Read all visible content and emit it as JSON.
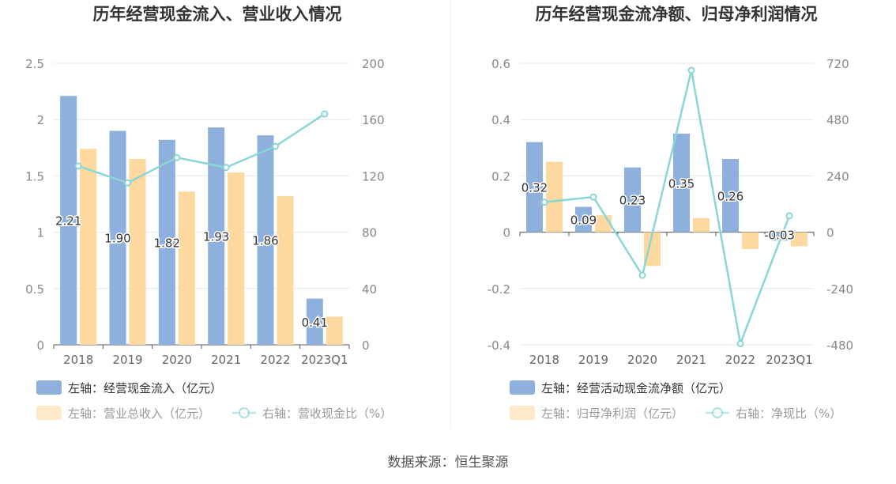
{
  "source_note": "数据来源：恒生聚源",
  "chart_data": [
    {
      "type": "bar",
      "title": "历年经营现金流入、营业收入情况",
      "categories": [
        "2018",
        "2019",
        "2020",
        "2021",
        "2022",
        "2023Q1"
      ],
      "ylim_left": [
        0,
        2.5
      ],
      "yticks_left": [
        "0",
        "0.5",
        "1",
        "1.5",
        "2",
        "2.5"
      ],
      "ylim_right": [
        0,
        200
      ],
      "yticks_right": [
        "0",
        "40",
        "80",
        "120",
        "160",
        "200"
      ],
      "series": [
        {
          "name": "左轴：经营现金流入（亿元）",
          "axis": "left",
          "kind": "bar",
          "color": "#8eb0dc",
          "values": [
            2.21,
            1.9,
            1.82,
            1.93,
            1.86,
            0.41
          ],
          "labels": [
            "2.21",
            "1.90",
            "1.82",
            "1.93",
            "1.86",
            "0.41"
          ]
        },
        {
          "name": "左轴：营业总收入（亿元）",
          "axis": "left",
          "kind": "bar",
          "color": "#fdd89f",
          "values": [
            1.74,
            1.65,
            1.36,
            1.53,
            1.32,
            0.25
          ]
        },
        {
          "name": "右轴：营收现金比（%）",
          "axis": "right",
          "kind": "line",
          "color": "#8ad6d6",
          "values": [
            127,
            115,
            133,
            126,
            141,
            164
          ]
        }
      ],
      "grid": true,
      "legend": "bottom-left"
    },
    {
      "type": "bar",
      "title": "历年经营现金流净额、归母净利润情况",
      "categories": [
        "2018",
        "2019",
        "2020",
        "2021",
        "2022",
        "2023Q1"
      ],
      "ylim_left": [
        -0.4,
        0.6
      ],
      "yticks_left": [
        "-0.4",
        "-0.2",
        "0",
        "0.2",
        "0.4",
        "0.6"
      ],
      "ylim_right": [
        -480,
        720
      ],
      "yticks_right": [
        "-480",
        "-240",
        "0",
        "240",
        "480",
        "720"
      ],
      "series": [
        {
          "name": "左轴：经营活动现金流净额（亿元）",
          "axis": "left",
          "kind": "bar",
          "color": "#8eb0dc",
          "values": [
            0.32,
            0.09,
            0.23,
            0.35,
            0.26,
            -0.03
          ],
          "labels": [
            "0.32",
            "0.09",
            "0.23",
            "0.35",
            "0.26",
            "-0.03"
          ]
        },
        {
          "name": "左轴：归母净利润（亿元）",
          "axis": "left",
          "kind": "bar",
          "color": "#fdd89f",
          "values": [
            0.25,
            0.06,
            -0.12,
            0.05,
            -0.06,
            -0.05
          ]
        },
        {
          "name": "右轴：净现比（%）",
          "axis": "right",
          "kind": "line",
          "color": "#8ad6d6",
          "values": [
            128,
            150,
            -184,
            690,
            -475,
            70
          ]
        }
      ],
      "grid": true,
      "legend": "bottom-left"
    }
  ]
}
